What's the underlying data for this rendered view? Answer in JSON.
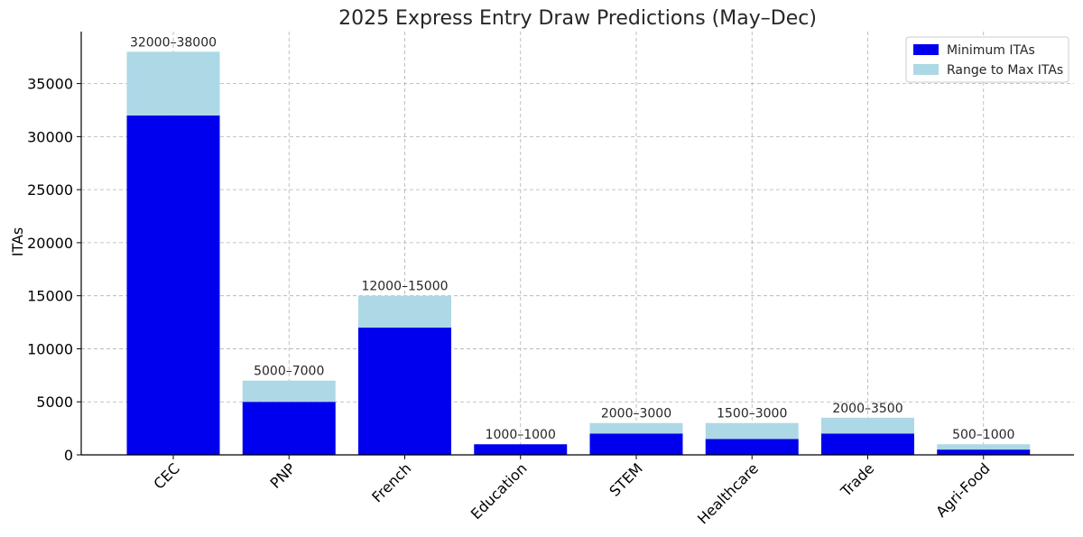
{
  "chart_data": {
    "type": "bar",
    "stacked": true,
    "title": "2025 Express Entry Draw Predictions (May–Dec)",
    "xlabel": "",
    "ylabel": "ITAs",
    "categories": [
      "CEC",
      "PNP",
      "French",
      "Education",
      "STEM",
      "Healthcare",
      "Trade",
      "Agri-Food"
    ],
    "series": [
      {
        "name": "Minimum ITAs",
        "color": "#0000ee",
        "values": [
          32000,
          5000,
          12000,
          1000,
          2000,
          1500,
          2000,
          500
        ]
      },
      {
        "name": "Range to Max ITAs",
        "color": "#add8e6",
        "values": [
          6000,
          2000,
          3000,
          0,
          1000,
          1500,
          1500,
          500
        ]
      }
    ],
    "data_labels": [
      "32000–38000",
      "5000–7000",
      "12000–15000",
      "1000–1000",
      "2000–3000",
      "1500–3000",
      "2000–3500",
      "500–1000"
    ],
    "yticks": [
      0,
      5000,
      10000,
      15000,
      20000,
      25000,
      30000,
      35000
    ],
    "ylim": [
      0,
      39900
    ],
    "grid": true,
    "legend_position": "top-right",
    "x_tick_rotation": -45
  }
}
